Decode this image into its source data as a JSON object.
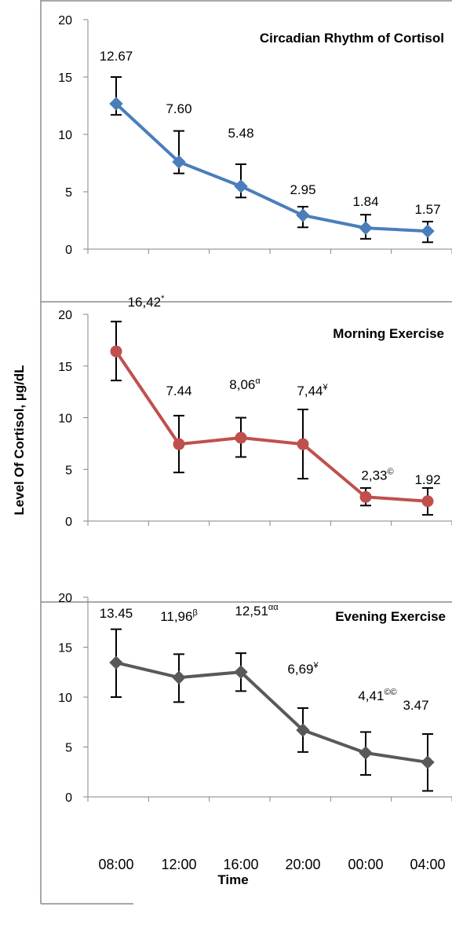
{
  "figure": {
    "ylabel": "Level Of Cortisol, µg/dL",
    "xlabel": "Time",
    "x_ticks": [
      "08:00",
      "12:00",
      "16:00",
      "20:00",
      "00:00",
      "04:00"
    ]
  },
  "chart_data": [
    {
      "type": "line",
      "title": "Circadian Rhythm of Cortisol",
      "categories": [
        "08:00",
        "12:00",
        "16:00",
        "20:00",
        "00:00",
        "04:00"
      ],
      "values": [
        12.67,
        7.6,
        5.48,
        2.95,
        1.84,
        1.57
      ],
      "error_low": [
        11.7,
        6.6,
        4.5,
        1.9,
        0.9,
        0.6
      ],
      "error_high": [
        15.0,
        10.3,
        7.4,
        3.7,
        3.0,
        2.4
      ],
      "labels": [
        {
          "text": "12.67",
          "sup": ""
        },
        {
          "text": "7.60",
          "sup": ""
        },
        {
          "text": "5.48",
          "sup": ""
        },
        {
          "text": "2.95",
          "sup": ""
        },
        {
          "text": "1.84",
          "sup": ""
        },
        {
          "text": "1.57",
          "sup": ""
        }
      ],
      "marker": "diamond",
      "color": "#4a7ebb",
      "ylim": [
        0,
        20
      ],
      "yticks": [
        "0",
        "5",
        "10",
        "15",
        "20"
      ]
    },
    {
      "type": "line",
      "title": "Morning Exercise",
      "categories": [
        "08:00",
        "12:00",
        "16:00",
        "20:00",
        "00:00",
        "04:00"
      ],
      "values": [
        16.42,
        7.44,
        8.06,
        7.44,
        2.33,
        1.92
      ],
      "error_low": [
        13.6,
        4.7,
        6.2,
        4.1,
        1.5,
        0.6
      ],
      "error_high": [
        19.3,
        10.2,
        10.0,
        10.8,
        3.2,
        3.2
      ],
      "labels": [
        {
          "text": "16,42",
          "sup": "*"
        },
        {
          "text": "7.44",
          "sup": ""
        },
        {
          "text": "8,06",
          "sup": "α"
        },
        {
          "text": "7,44",
          "sup": "¥"
        },
        {
          "text": "2,33",
          "sup": "©"
        },
        {
          "text": "1.92",
          "sup": ""
        }
      ],
      "marker": "circle",
      "color": "#c0504d",
      "ylim": [
        0,
        20
      ],
      "yticks": [
        "0",
        "5",
        "10",
        "15",
        "20"
      ]
    },
    {
      "type": "line",
      "title": "Evening Exercise",
      "categories": [
        "08:00",
        "12:00",
        "16:00",
        "20:00",
        "00:00",
        "04:00"
      ],
      "values": [
        13.45,
        11.96,
        12.51,
        6.69,
        4.41,
        3.47
      ],
      "error_low": [
        10.0,
        9.5,
        10.6,
        4.5,
        2.2,
        0.6
      ],
      "error_high": [
        16.8,
        14.3,
        14.4,
        8.9,
        6.5,
        6.3
      ],
      "labels": [
        {
          "text": "13.45",
          "sup": ""
        },
        {
          "text": "11,96",
          "sup": "β"
        },
        {
          "text": "12,51",
          "sup": "αα"
        },
        {
          "text": "6,69",
          "sup": "¥"
        },
        {
          "text": "4,41",
          "sup": "©©"
        },
        {
          "text": "3.47",
          "sup": ""
        }
      ],
      "marker": "diamond",
      "color": "#595959",
      "ylim": [
        0,
        20
      ],
      "yticks": [
        "0",
        "5",
        "10",
        "15",
        "20"
      ]
    }
  ]
}
